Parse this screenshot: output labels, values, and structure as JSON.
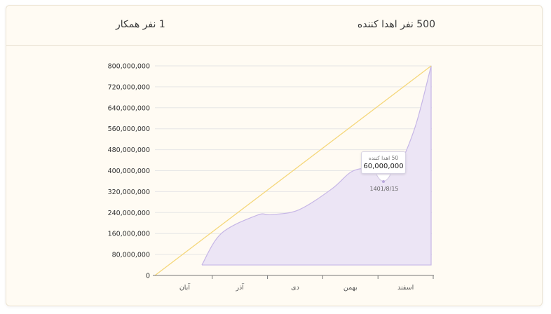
{
  "header": {
    "donors_stat": "500 نفر اهدا کننده",
    "collaborators_stat": "1 نفر همکار"
  },
  "colors": {
    "card_background": "#fffbf3",
    "area_fill": "#ece5f5",
    "area_stroke": "#c6b6e6",
    "target_line": "#f5d77a",
    "grid": "#e6e6e6"
  },
  "tooltip": {
    "title": "50 اهدا کننده",
    "value": "60,000,000",
    "date": "1401/8/15"
  },
  "chart_data": {
    "type": "area",
    "y_ticks": [
      "0",
      "80,000,000",
      "160,000,000",
      "240,000,000",
      "320,000,000",
      "400,000,000",
      "480,000,000",
      "560,000,000",
      "640,000,000",
      "720,000,000",
      "800,000,000"
    ],
    "ylim": [
      0,
      800000000
    ],
    "categories": [
      "آبان",
      "آذر",
      "دی",
      "بهمن",
      "اسفند"
    ],
    "grid": true,
    "series": [
      {
        "type": "line",
        "values": [
          [
            0.0,
            0
          ],
          [
            5.0,
            800000000
          ]
        ]
      },
      {
        "type": "area",
        "values": [
          [
            0.85,
            40000000
          ],
          [
            1.2,
            160000000
          ],
          [
            1.85,
            230000000
          ],
          [
            2.1,
            232000000
          ],
          [
            2.6,
            250000000
          ],
          [
            3.2,
            330000000
          ],
          [
            3.55,
            395000000
          ],
          [
            3.85,
            410000000
          ],
          [
            4.05,
            405000000
          ],
          [
            4.35,
            400000000
          ],
          [
            4.7,
            560000000
          ],
          [
            5.0,
            800000000
          ]
        ]
      }
    ]
  }
}
